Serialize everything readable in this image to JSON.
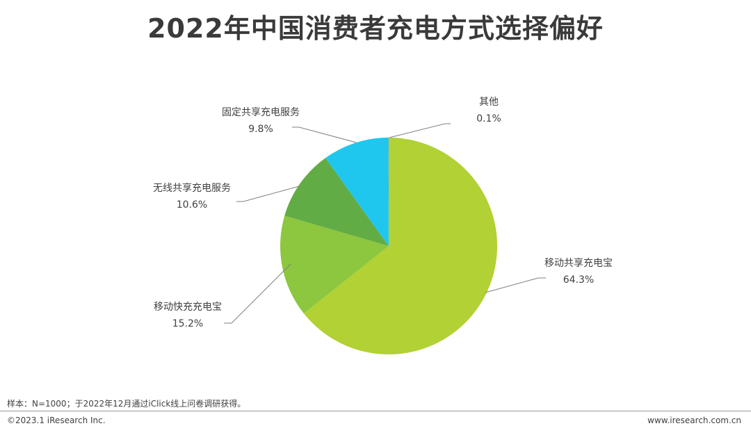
{
  "title": "2022年中国消费者充电方式选择偏好",
  "chart_data": {
    "type": "pie",
    "title": "2022年中国消费者充电方式选择偏好",
    "slices": [
      {
        "label": "移动共享充电宝",
        "value": 64.3,
        "display": "64.3%",
        "color": "#b1d134"
      },
      {
        "label": "移动快充充电宝",
        "value": 15.2,
        "display": "15.2%",
        "color": "#8dc63f"
      },
      {
        "label": "无线共享充电服务",
        "value": 10.6,
        "display": "10.6%",
        "color": "#62ac45"
      },
      {
        "label": "固定共享充电服务",
        "value": 9.8,
        "display": "9.8%",
        "color": "#1fc7ef"
      },
      {
        "label": "其他",
        "value": 0.1,
        "display": "0.1%",
        "color": "#3fb2d6"
      }
    ],
    "start": "12 o'clock",
    "direction": "clockwise"
  },
  "footer": {
    "note": "样本：N=1000；于2022年12月通过iClick线上问卷调研获得。",
    "copyright": "©2023.1 iResearch Inc.",
    "url": "www.iresearch.com.cn"
  }
}
